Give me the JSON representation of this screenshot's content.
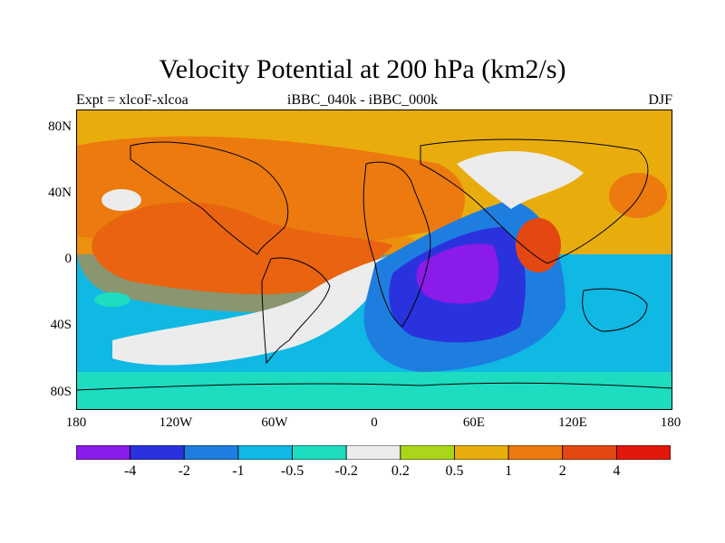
{
  "title": "Velocity Potential at 200 hPa (km2/s)",
  "subtitle": {
    "left": "Expt = xlcoF-xlcoa",
    "center": "iBBC_040k - iBBC_000k",
    "right": "DJF"
  },
  "axes": {
    "lat_labels": [
      "80N",
      "40N",
      "0",
      "40S",
      "80S"
    ],
    "lon_labels": [
      "180",
      "120W",
      "60W",
      "0",
      "60E",
      "120E",
      "180"
    ]
  },
  "colorbar": {
    "colors": [
      "#8a1be8",
      "#2a32de",
      "#1e7ee0",
      "#10b8e4",
      "#1ddcc0",
      "#ececec",
      "#a9d61a",
      "#e8ad0c",
      "#ec7a0e",
      "#e44812",
      "#e3170c"
    ],
    "labels": [
      "-4",
      "-2",
      "-1",
      "-0.5",
      "-0.2",
      "0.2",
      "0.5",
      "1",
      "2",
      "4"
    ]
  }
}
